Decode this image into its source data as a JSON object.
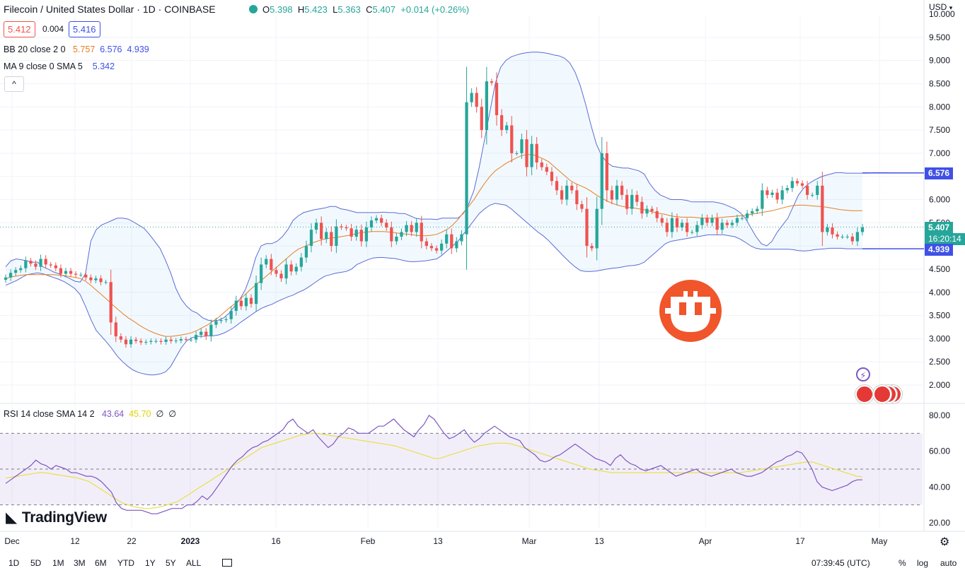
{
  "header": {
    "title": "Filecoin / United States Dollar · 1D · COINBASE",
    "ohlc": [
      {
        "k": "O",
        "v": "5.398"
      },
      {
        "k": "H",
        "v": "5.423"
      },
      {
        "k": "L",
        "v": "5.363"
      },
      {
        "k": "C",
        "v": "5.407"
      }
    ],
    "change": "+0.014 (+0.26%)",
    "bid": "5.412",
    "spread": "0.004",
    "ask": "5.416",
    "currency": "USD"
  },
  "indicators": {
    "bb": {
      "label": "BB 20 close 2 0",
      "basis": "5.757",
      "upper": "6.576",
      "lower": "4.939"
    },
    "ma": {
      "label": "MA 9 close 0 SMA 5",
      "value": "5.342"
    },
    "rsi": {
      "label": "RSI 14 close SMA 14 2",
      "rsi": "43.64",
      "sma": "45.70",
      "e1": "∅",
      "e2": "∅"
    }
  },
  "collapse_label": "^",
  "price_tags": {
    "upper": "6.576",
    "last": "5.407",
    "countdown": "16:20:14",
    "lower": "4.939"
  },
  "brand": "TradingView",
  "bottom": {
    "ranges": [
      "1D",
      "5D",
      "1M",
      "3M",
      "6M",
      "YTD",
      "1Y",
      "5Y",
      "ALL"
    ],
    "time": "07:39:45 (UTC)",
    "options": [
      "%",
      "log",
      "auto"
    ]
  },
  "colors": {
    "up": "#26a69a",
    "down": "#ef5350",
    "bb_band": "#5b6bd5",
    "bb_basis": "#e67e22",
    "rsi_line": "#7e57c2",
    "rsi_sma": "#e8e04a",
    "tag_blue": "#3f51e6",
    "tag_green": "#26a69a",
    "logo": "#f0552b"
  },
  "chart_data": [
    {
      "type": "candlestick",
      "title": "Filecoin / United States Dollar · 1D · COINBASE",
      "y_ticks": [
        2.0,
        2.5,
        3.0,
        3.5,
        4.0,
        4.5,
        5.0,
        5.5,
        6.0,
        6.5,
        7.0,
        7.5,
        8.0,
        8.5,
        9.0,
        9.5,
        10.0
      ],
      "y_tick_labels": [
        "2.000",
        "2.500",
        "3.000",
        "3.500",
        "4.000",
        "4.500",
        "5.000",
        "5.500",
        "6.000",
        "6.500",
        "7.000",
        "7.500",
        "8.000",
        "8.500",
        "9.000",
        "9.500",
        "10.000"
      ],
      "ylim": [
        1.85,
        10.0
      ],
      "x_tick_labels": [
        "Dec",
        "12",
        "22",
        "2023",
        "16",
        "Feb",
        "13",
        "Mar",
        "13",
        "Apr",
        "17",
        "May"
      ],
      "close": [
        4.32,
        4.42,
        4.48,
        4.52,
        4.68,
        4.62,
        4.55,
        4.72,
        4.6,
        4.58,
        4.52,
        4.4,
        4.46,
        4.4,
        4.38,
        4.38,
        4.32,
        4.26,
        4.3,
        4.22,
        4.22,
        3.35,
        3.05,
        2.98,
        2.88,
        2.98,
        2.95,
        2.92,
        2.93,
        2.95,
        2.95,
        2.93,
        2.98,
        2.95,
        2.96,
        2.99,
        2.98,
        2.98,
        3.08,
        3.15,
        3.05,
        3.3,
        3.38,
        3.4,
        3.42,
        3.6,
        3.82,
        3.7,
        3.88,
        3.75,
        4.2,
        4.6,
        4.72,
        4.48,
        4.4,
        4.3,
        4.6,
        4.45,
        4.55,
        4.75,
        5.0,
        5.35,
        5.5,
        5.15,
        5.3,
        5.0,
        5.42,
        5.4,
        5.38,
        5.2,
        5.35,
        5.1,
        5.4,
        5.55,
        5.6,
        5.5,
        5.4,
        5.1,
        5.2,
        5.3,
        5.45,
        5.3,
        5.5,
        5.1,
        5.0,
        4.95,
        4.9,
        5.05,
        5.25,
        4.95,
        5.1,
        5.25,
        8.1,
        8.3,
        8.0,
        7.5,
        8.55,
        8.52,
        7.82,
        7.5,
        7.6,
        7.0,
        7.0,
        7.3,
        6.7,
        7.2,
        6.8,
        6.7,
        6.6,
        6.4,
        6.2,
        6.0,
        6.3,
        6.2,
        5.9,
        5.8,
        5.0,
        4.95,
        5.8,
        7.0,
        6.2,
        6.0,
        6.3,
        6.1,
        5.8,
        6.1,
        5.95,
        5.7,
        5.8,
        5.75,
        5.6,
        5.5,
        5.3,
        5.6,
        5.4,
        5.5,
        5.3,
        5.3,
        5.45,
        5.6,
        5.5,
        5.6,
        5.35,
        5.5,
        5.45,
        5.5,
        5.6,
        5.6,
        5.7,
        5.75,
        5.8,
        6.2,
        6.1,
        6.15,
        6.0,
        6.2,
        6.25,
        6.4,
        6.35,
        6.3,
        6.1,
        6.1,
        6.3,
        5.3,
        5.4,
        5.25,
        5.2,
        5.2,
        5.2,
        5.1,
        5.3,
        5.4
      ],
      "bb_upper": [
        4.55,
        4.68,
        4.72,
        4.7,
        4.68,
        4.65,
        4.65,
        4.55,
        4.5,
        4.44,
        4.4,
        4.35,
        4.3,
        4.24,
        4.22,
        4.4,
        5.1,
        5.35,
        5.45,
        5.5,
        5.55,
        5.6,
        5.6,
        5.58,
        5.52,
        5.45,
        5.38,
        5.25,
        5.1,
        4.95,
        4.7,
        4.42,
        4.08,
        3.85,
        3.7,
        3.6,
        3.55,
        3.45,
        3.4,
        3.38,
        3.4,
        3.45,
        3.55,
        3.7,
        3.85,
        4.05,
        4.35,
        4.75,
        5.0,
        5.05,
        5.05,
        5.1,
        5.2,
        5.35,
        5.55,
        5.65,
        5.72,
        5.75,
        5.78,
        5.8,
        5.82,
        5.85,
        5.85,
        5.8,
        5.78,
        5.75,
        5.72,
        5.72,
        5.72,
        5.72,
        5.72,
        5.73,
        5.72,
        5.72,
        5.7,
        5.7,
        5.65,
        5.6,
        5.58,
        5.58,
        5.58,
        5.57,
        5.6,
        5.6,
        5.6,
        5.6,
        5.7,
        5.9,
        6.2,
        6.7,
        7.3,
        7.9,
        8.5,
        8.85,
        9.0,
        9.08,
        9.12,
        9.15,
        9.17,
        9.18,
        9.18,
        9.17,
        9.15,
        9.12,
        9.1,
        9.05,
        8.95,
        8.75,
        8.45,
        8.05,
        7.6,
        7.2,
        6.95,
        6.8,
        6.72,
        6.7,
        6.68,
        6.68,
        6.65,
        6.62,
        6.55,
        6.35,
        6.2,
        6.1,
        6.05,
        6.0,
        6.0,
        6.0,
        5.98,
        5.95,
        5.95,
        5.95,
        5.95,
        5.95,
        5.93,
        5.9,
        5.85,
        5.8,
        5.72,
        5.6,
        5.4,
        5.2,
        5.05,
        5.0,
        5.1,
        5.3,
        5.45,
        5.6,
        5.85,
        6.1,
        6.25,
        6.35,
        6.42,
        6.48,
        6.52,
        6.55,
        6.58,
        6.58,
        6.57,
        6.57,
        6.57,
        6.57,
        6.57,
        6.58,
        6.58,
        6.58,
        6.58
      ],
      "bb_basis": [
        4.3,
        4.33,
        4.35,
        4.37,
        4.38,
        4.38,
        4.38,
        4.38,
        4.38,
        4.38,
        4.37,
        4.36,
        4.34,
        4.32,
        4.3,
        4.24,
        4.15,
        4.05,
        3.95,
        3.85,
        3.74,
        3.64,
        3.54,
        3.45,
        3.38,
        3.3,
        3.23,
        3.17,
        3.12,
        3.08,
        3.05,
        3.05,
        3.06,
        3.08,
        3.1,
        3.13,
        3.18,
        3.24,
        3.3,
        3.38,
        3.46,
        3.56,
        3.66,
        3.75,
        3.85,
        3.95,
        4.06,
        4.16,
        4.25,
        4.35,
        4.45,
        4.55,
        4.65,
        4.75,
        4.85,
        4.93,
        4.98,
        5.03,
        5.08,
        5.12,
        5.15,
        5.17,
        5.18,
        5.2,
        5.22,
        5.24,
        5.27,
        5.29,
        5.3,
        5.31,
        5.31,
        5.31,
        5.3,
        5.29,
        5.27,
        5.26,
        5.25,
        5.23,
        5.22,
        5.22,
        5.23,
        5.25,
        5.3,
        5.36,
        5.45,
        5.57,
        5.72,
        5.85,
        6.0,
        6.18,
        6.35,
        6.5,
        6.62,
        6.7,
        6.78,
        6.84,
        6.9,
        6.95,
        6.97,
        6.97,
        6.93,
        6.88,
        6.82,
        6.72,
        6.62,
        6.52,
        6.42,
        6.35,
        6.3,
        6.25,
        6.18,
        6.1,
        6.03,
        5.97,
        5.92,
        5.88,
        5.85,
        5.83,
        5.82,
        5.8,
        5.78,
        5.75,
        5.72,
        5.7,
        5.68,
        5.65,
        5.63,
        5.62,
        5.62,
        5.62,
        5.61,
        5.6,
        5.6,
        5.6,
        5.61,
        5.62,
        5.63,
        5.64,
        5.65,
        5.66,
        5.68,
        5.7,
        5.72,
        5.74,
        5.76,
        5.79,
        5.82,
        5.85,
        5.87,
        5.88,
        5.88,
        5.87,
        5.86,
        5.85,
        5.84,
        5.82,
        5.8,
        5.78,
        5.77,
        5.76,
        5.76,
        5.76
      ],
      "bb_lower": [
        4.15,
        4.2,
        4.25,
        4.32,
        4.38,
        4.4,
        4.42,
        4.4,
        4.36,
        4.32,
        4.28,
        4.23,
        4.16,
        4.08,
        3.95,
        3.7,
        3.42,
        3.18,
        3.05,
        2.92,
        2.78,
        2.62,
        2.5,
        2.4,
        2.32,
        2.27,
        2.24,
        2.22,
        2.22,
        2.24,
        2.28,
        2.4,
        2.6,
        2.8,
        2.95,
        3.02,
        3.05,
        3.05,
        3.06,
        3.06,
        3.08,
        3.12,
        3.18,
        3.25,
        3.34,
        3.42,
        3.5,
        3.58,
        3.65,
        3.7,
        3.74,
        3.8,
        3.85,
        3.9,
        3.94,
        4.0,
        4.05,
        4.12,
        4.2,
        4.28,
        4.35,
        4.38,
        4.41,
        4.43,
        4.45,
        4.5,
        4.6,
        4.65,
        4.7,
        4.74,
        4.75,
        4.75,
        4.74,
        4.73,
        4.71,
        4.68,
        4.66,
        4.66,
        4.67,
        4.68,
        4.7,
        4.72,
        4.8,
        4.9,
        5.0,
        5.1,
        5.25,
        5.4,
        5.55,
        5.7,
        5.8,
        5.88,
        5.92,
        5.9,
        5.88,
        5.8,
        5.7,
        5.6,
        5.5,
        5.4,
        5.3,
        5.22,
        5.12,
        5.0,
        4.88,
        4.76,
        4.65,
        4.55,
        4.47,
        4.45,
        4.45,
        4.46,
        4.48,
        4.5,
        4.52,
        4.53,
        4.55,
        4.57,
        4.58,
        4.6,
        4.65,
        4.75,
        4.85,
        4.95,
        5.05,
        5.1,
        5.12,
        5.14,
        5.16,
        5.18,
        5.2,
        5.22,
        5.24,
        5.24,
        5.24,
        5.24,
        5.22,
        5.2,
        5.15,
        5.08,
        5.0,
        4.95,
        4.93,
        4.93,
        4.93,
        4.93,
        4.93,
        4.93,
        4.92,
        4.9,
        4.89,
        4.9,
        4.92,
        4.93,
        4.94,
        4.95,
        4.95,
        4.95,
        4.94,
        4.94,
        4.94,
        4.94,
        4.94,
        4.94
      ],
      "bb_upper_last": 6.576,
      "bb_basis_last": 5.757,
      "bb_lower_last": 4.939,
      "last_price": 5.407
    },
    {
      "type": "line",
      "title": "RSI 14 close SMA 14 2",
      "y_ticks": [
        20,
        40,
        60,
        80
      ],
      "ylim": [
        17,
        84
      ],
      "bands": [
        30,
        50,
        70
      ],
      "rsi": [
        42,
        44,
        46,
        48,
        50,
        52,
        55,
        53,
        52,
        50,
        52,
        51,
        50,
        48,
        48,
        47,
        46,
        46,
        45,
        43,
        40,
        37,
        31,
        28,
        27,
        27,
        27,
        27,
        26,
        25,
        25,
        26,
        27,
        28,
        28,
        28,
        30,
        30,
        32,
        35,
        33,
        36,
        40,
        44,
        48,
        52,
        55,
        57,
        60,
        62,
        63,
        65,
        66,
        68,
        70,
        72,
        76,
        78,
        74,
        72,
        70,
        72,
        68,
        65,
        62,
        64,
        68,
        70,
        73,
        72,
        70,
        70,
        70,
        72,
        74,
        74,
        76,
        78,
        75,
        72,
        70,
        68,
        72,
        75,
        80,
        78,
        74,
        70,
        67,
        68,
        70,
        72,
        68,
        65,
        67,
        70,
        72,
        74,
        72,
        70,
        68,
        67,
        66,
        62,
        60,
        58,
        55,
        54,
        55,
        57,
        58,
        60,
        62,
        64,
        62,
        60,
        58,
        56,
        55,
        54,
        52,
        56,
        58,
        55,
        53,
        52,
        50,
        49,
        50,
        51,
        52,
        50,
        48,
        46,
        47,
        48,
        49,
        50,
        48,
        47,
        46,
        47,
        48,
        49,
        50,
        48,
        47,
        46,
        46,
        47,
        48,
        50,
        52,
        54,
        55,
        57,
        58,
        60,
        59,
        55,
        50,
        43,
        40,
        39,
        38,
        39,
        40,
        41,
        43,
        44,
        44
      ],
      "rsi_sma": [
        45,
        45.5,
        46,
        46.5,
        47,
        47.5,
        48,
        48,
        47.5,
        47,
        46.5,
        46,
        45.5,
        45,
        44,
        43,
        41,
        39,
        37,
        35,
        33,
        31,
        30,
        29,
        28.5,
        28,
        28,
        28.5,
        29,
        30,
        31,
        32,
        34,
        36,
        38,
        40,
        42,
        44,
        46,
        48,
        50,
        52,
        54,
        56,
        58,
        60,
        62,
        63,
        64,
        65,
        66,
        67,
        68,
        69,
        69.5,
        70,
        70,
        69.5,
        69,
        68.5,
        68,
        67.5,
        67,
        66.5,
        66,
        65.5,
        65,
        64.5,
        64,
        63.5,
        63,
        62,
        61,
        60,
        59,
        58,
        57,
        56,
        56,
        57,
        58,
        59,
        60,
        61,
        62,
        63,
        63.5,
        64,
        64.5,
        64.5,
        64.5,
        64,
        63,
        62,
        61,
        60,
        59,
        58,
        57,
        56,
        55,
        54,
        53,
        52,
        51,
        50,
        49.5,
        49,
        48.5,
        48,
        48,
        48,
        48,
        48,
        48,
        48,
        48,
        48,
        48,
        48,
        48,
        48,
        48,
        48,
        48,
        48,
        48,
        48,
        48,
        48,
        48,
        48,
        48,
        48.5,
        49,
        49.5,
        50,
        50.5,
        51,
        51.5,
        52,
        52.5,
        53,
        53.5,
        54,
        54,
        53,
        52,
        51,
        50,
        49,
        48,
        47,
        46,
        45.7
      ],
      "last_rsi": 43.64,
      "last_sma": 45.7
    }
  ]
}
